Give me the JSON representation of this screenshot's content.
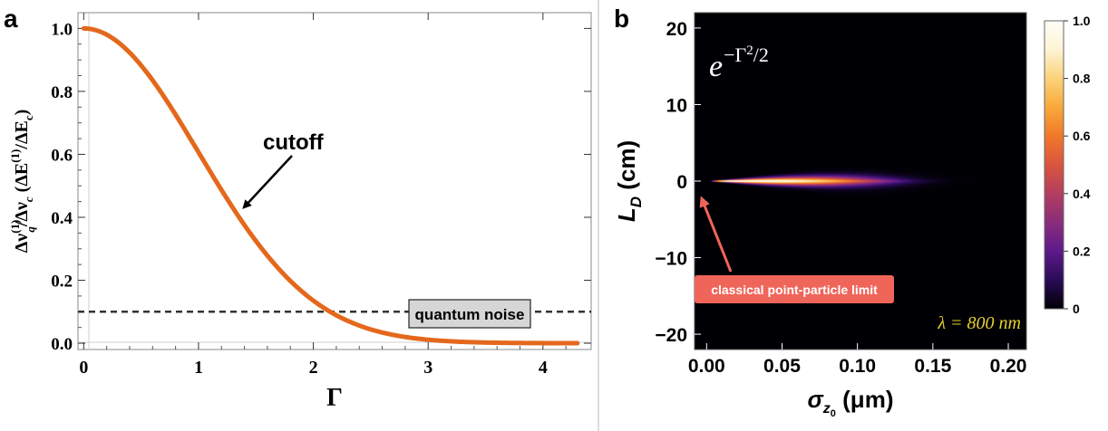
{
  "panel_a": {
    "label": "a",
    "annotation": "cutoff",
    "noise_label": "quantum noise",
    "chart_data": {
      "type": "line",
      "x_range": [
        0,
        4.3
      ],
      "xlim": [
        -0.05,
        4.42
      ],
      "ylim": [
        -0.02,
        1.05
      ],
      "xticks": [
        0,
        1,
        2,
        3,
        4
      ],
      "yticks": [
        0.0,
        0.2,
        0.4,
        0.6,
        0.8,
        1.0
      ],
      "ytick_labels": [
        "0.0",
        "0.2",
        "0.4",
        "0.6",
        "0.8",
        "1.0"
      ],
      "xlabel": "Γ",
      "ylabel_parts": [
        "Δν",
        "(1)",
        "q",
        "/Δν",
        "c",
        " (ΔE",
        "(1)",
        "/ΔE",
        "c",
        ")"
      ],
      "function": "exp(-x^2/2)",
      "noise_level": 0.1,
      "line_color": "#e4681c",
      "noise_color": "#333333"
    }
  },
  "panel_b": {
    "label": "b",
    "formula_base": "e",
    "formula_exp": "−Γ",
    "formula_exp_pow": "2",
    "formula_exp_tail": "/2",
    "lambda_label": "λ = 800 nm",
    "limit_label": "classical point-particle limit",
    "chart_data": {
      "type": "heatmap",
      "function": "exp(-Γ^2/2), Γ depends on L_D / σ_z0",
      "xlim": [
        -0.008,
        0.212
      ],
      "ylim": [
        -22,
        22
      ],
      "xticks": [
        0.0,
        0.05,
        0.1,
        0.15,
        0.2
      ],
      "xtick_labels": [
        "0.00",
        "0.05",
        "0.10",
        "0.15",
        "0.20"
      ],
      "yticks": [
        -20,
        -10,
        0,
        10,
        20
      ],
      "ytick_labels": [
        "−20",
        "−10",
        "0",
        "10",
        "20"
      ],
      "xlabel_sym": "σ",
      "xlabel_sub": "z",
      "xlabel_subsub": "0",
      "xlabel_unit": " (μm)",
      "ylabel_sym": "L",
      "ylabel_sub": "D",
      "ylabel_unit": " (cm)",
      "colorbar": {
        "ticks": [
          0,
          0.2,
          0.4,
          0.6,
          0.8,
          1.0
        ],
        "tick_labels": [
          "0",
          "0.2",
          "0.4",
          "0.6",
          "0.8",
          "1.0"
        ],
        "range": [
          0,
          1
        ]
      },
      "colormap": [
        "#000004",
        "#2a0b57",
        "#5c1a8a",
        "#8a2d7c",
        "#b33e5f",
        "#d9553e",
        "#f0782a",
        "#f9a93a",
        "#fbd27a",
        "#fdf4d4",
        "#fffdf7"
      ],
      "limit_box_color": "#f0655a",
      "lambda_color": "#e8d232",
      "formula_color": "#ffffff"
    }
  }
}
